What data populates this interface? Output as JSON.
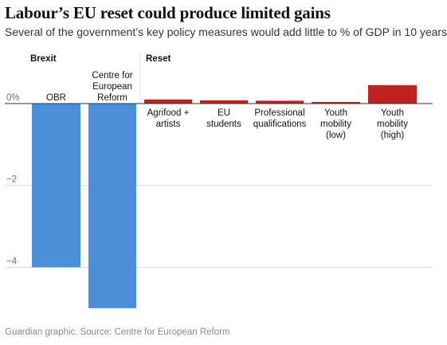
{
  "title": "Labour’s EU reset could produce limited gains",
  "subtitle": "Several of the government’s key policy measures would add little to % of GDP in 10 years",
  "source": "Guardian graphic. Source: Centre for European Reform",
  "colors": {
    "brexit": "#4a90d9",
    "reset": "#c0211f",
    "grid": "#dcdcdc",
    "zero_line": "#333333",
    "axis_text": "#707070"
  },
  "chart_data": {
    "type": "bar",
    "title": "Labour’s EU reset could produce limited gains",
    "subtitle": "Several of the government’s key policy measures would add little to % of GDP in 10 years",
    "ylabel": "",
    "ylim": [
      -5.1,
      0.55
    ],
    "yticks": [
      0,
      -2,
      -4
    ],
    "ytick_labels": [
      "0%",
      "−2",
      "−4"
    ],
    "grid": true,
    "groups": [
      {
        "name": "Brexit",
        "categories": [
          [
            "OBR"
          ],
          [
            "Centre for",
            "European",
            "Reform"
          ]
        ],
        "values": [
          -4.0,
          -5.0
        ]
      },
      {
        "name": "Reset",
        "categories": [
          [
            "Agrifood +",
            "artists"
          ],
          [
            "EU",
            "students"
          ],
          [
            "Professional",
            "qualifications"
          ],
          [
            "Youth",
            "mobility",
            "(low)"
          ],
          [
            "Youth",
            "mobility",
            "(high)"
          ]
        ],
        "values": [
          0.1,
          0.08,
          0.07,
          0.04,
          0.45
        ]
      }
    ]
  }
}
